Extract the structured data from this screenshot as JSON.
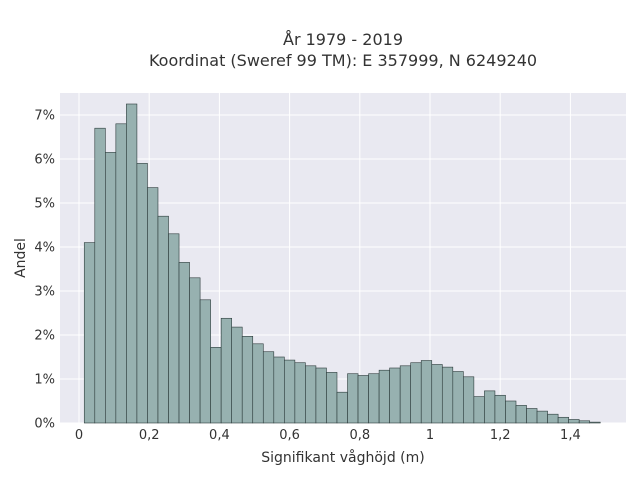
{
  "chart_data": {
    "type": "bar",
    "title_line1": "År 1979 - 2019",
    "title_line2": "Koordinat (Sweref 99 TM): E 357999, N 6249240",
    "xlabel": "Signifikant våghöjd (m)",
    "ylabel": "Andel",
    "xlim": [
      -0.05,
      1.55
    ],
    "ylim": [
      0,
      7.5
    ],
    "x_ticks": [
      0,
      0.2,
      0.4,
      0.6,
      0.8,
      1.0,
      1.2,
      1.4
    ],
    "x_tick_labels": [
      "0",
      "0,2",
      "0,4",
      "0,6",
      "0,8",
      "1",
      "1,2",
      "1,4"
    ],
    "y_ticks": [
      0,
      1,
      2,
      3,
      4,
      5,
      6,
      7
    ],
    "y_tick_labels": [
      "0%",
      "1%",
      "2%",
      "3%",
      "4%",
      "5%",
      "6%",
      "7%"
    ],
    "bin_width": 0.03,
    "bin_start": 0.015,
    "values": [
      4.1,
      6.7,
      6.15,
      6.8,
      7.25,
      5.9,
      5.35,
      4.7,
      4.3,
      3.65,
      3.3,
      2.8,
      1.72,
      2.38,
      2.18,
      1.97,
      1.8,
      1.62,
      1.5,
      1.43,
      1.37,
      1.3,
      1.25,
      1.15,
      0.7,
      1.12,
      1.08,
      1.12,
      1.2,
      1.25,
      1.3,
      1.37,
      1.42,
      1.33,
      1.27,
      1.17,
      1.05,
      0.6,
      0.73,
      0.63,
      0.5,
      0.4,
      0.33,
      0.27,
      0.2,
      0.13,
      0.08,
      0.05,
      0.02
    ],
    "grid": true,
    "colors": {
      "background": "#e9e9f1",
      "bar": "#97b1b0",
      "edge": "#2b3a3a",
      "grid": "#ffffff"
    }
  }
}
